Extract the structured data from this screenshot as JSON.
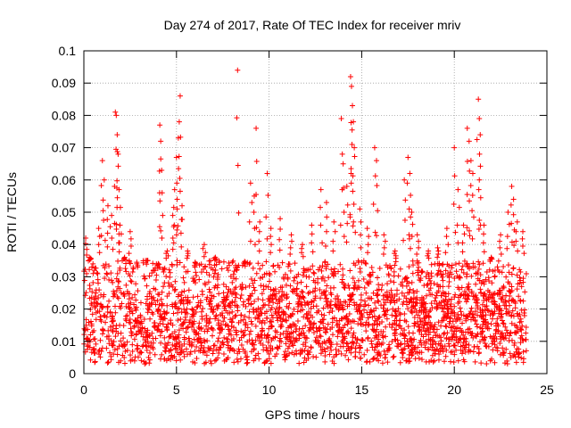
{
  "chart_data": {
    "type": "scatter",
    "title": "Day 274 of 2017, Rate Of TEC Index for receiver mriv",
    "xlabel": "GPS time / hours",
    "ylabel": "ROTI / TECUs",
    "xlim": [
      0,
      25
    ],
    "ylim": [
      0,
      0.1
    ],
    "xticks": [
      0,
      5,
      10,
      15,
      20,
      25
    ],
    "yticks": [
      0,
      0.01,
      0.02,
      0.03,
      0.04,
      0.05,
      0.06,
      0.07,
      0.08,
      0.09,
      0.1
    ],
    "xtick_labels": [
      "0",
      "5",
      "10",
      "15",
      "20",
      "25"
    ],
    "ytick_labels": [
      "0",
      "0.01",
      "0.02",
      "0.03",
      "0.04",
      "0.05",
      "0.06",
      "0.07",
      "0.08",
      "0.09",
      "0.1"
    ],
    "grid": true,
    "marker": "+",
    "color": "#ff0000",
    "data_range_hours": [
      0,
      23.9
    ],
    "series": [
      {
        "name": "ROTI",
        "points": [
          [
            0.1,
            0.042
          ],
          [
            0.3,
            0.036
          ],
          [
            0.5,
            0.031
          ],
          [
            0.8,
            0.045
          ],
          [
            1.0,
            0.066
          ],
          [
            1.1,
            0.06
          ],
          [
            1.3,
            0.052
          ],
          [
            1.5,
            0.049
          ],
          [
            1.7,
            0.081
          ],
          [
            1.75,
            0.08
          ],
          [
            1.8,
            0.074
          ],
          [
            1.85,
            0.068
          ],
          [
            1.9,
            0.057
          ],
          [
            1.95,
            0.046
          ],
          [
            2.2,
            0.036
          ],
          [
            2.5,
            0.044
          ],
          [
            2.9,
            0.033
          ],
          [
            3.4,
            0.035
          ],
          [
            3.9,
            0.029
          ],
          [
            4.1,
            0.077
          ],
          [
            4.15,
            0.072
          ],
          [
            4.2,
            0.063
          ],
          [
            4.5,
            0.038
          ],
          [
            4.8,
            0.049
          ],
          [
            4.9,
            0.057
          ],
          [
            5.0,
            0.067
          ],
          [
            5.1,
            0.073
          ],
          [
            5.15,
            0.078
          ],
          [
            5.2,
            0.086
          ],
          [
            5.3,
            0.052
          ],
          [
            5.6,
            0.038
          ],
          [
            6.0,
            0.033
          ],
          [
            6.5,
            0.04
          ],
          [
            7.1,
            0.036
          ],
          [
            7.8,
            0.032
          ],
          [
            8.3,
            0.094
          ],
          [
            8.7,
            0.034
          ],
          [
            9.0,
            0.059
          ],
          [
            9.2,
            0.055
          ],
          [
            9.3,
            0.076
          ],
          [
            9.5,
            0.047
          ],
          [
            9.9,
            0.062
          ],
          [
            10.1,
            0.045
          ],
          [
            10.6,
            0.048
          ],
          [
            11.2,
            0.043
          ],
          [
            11.8,
            0.04
          ],
          [
            12.3,
            0.046
          ],
          [
            12.8,
            0.057
          ],
          [
            13.1,
            0.053
          ],
          [
            13.5,
            0.047
          ],
          [
            13.9,
            0.079
          ],
          [
            14.0,
            0.065
          ],
          [
            14.2,
            0.058
          ],
          [
            14.4,
            0.092
          ],
          [
            14.45,
            0.089
          ],
          [
            14.5,
            0.083
          ],
          [
            14.55,
            0.078
          ],
          [
            14.6,
            0.07
          ],
          [
            14.9,
            0.051
          ],
          [
            15.3,
            0.045
          ],
          [
            15.7,
            0.07
          ],
          [
            15.8,
            0.066
          ],
          [
            16.2,
            0.043
          ],
          [
            16.8,
            0.038
          ],
          [
            17.3,
            0.06
          ],
          [
            17.5,
            0.067
          ],
          [
            17.6,
            0.062
          ],
          [
            17.7,
            0.05
          ],
          [
            18.0,
            0.043
          ],
          [
            18.6,
            0.038
          ],
          [
            19.1,
            0.039
          ],
          [
            19.6,
            0.045
          ],
          [
            20.0,
            0.07
          ],
          [
            20.2,
            0.057
          ],
          [
            20.5,
            0.046
          ],
          [
            20.7,
            0.076
          ],
          [
            20.8,
            0.072
          ],
          [
            20.9,
            0.066
          ],
          [
            21.0,
            0.062
          ],
          [
            21.3,
            0.085
          ],
          [
            21.35,
            0.079
          ],
          [
            21.4,
            0.074
          ],
          [
            21.6,
            0.046
          ],
          [
            22.0,
            0.036
          ],
          [
            22.5,
            0.043
          ],
          [
            22.9,
            0.05
          ],
          [
            23.1,
            0.058
          ],
          [
            23.2,
            0.054
          ],
          [
            23.4,
            0.047
          ],
          [
            23.7,
            0.044
          ]
        ],
        "dense_band": {
          "x_range": [
            0,
            23.9
          ],
          "y_typical": [
            0.006,
            0.025
          ],
          "y_floor": 0.003,
          "y_upper_frequent": 0.035
        }
      }
    ]
  }
}
